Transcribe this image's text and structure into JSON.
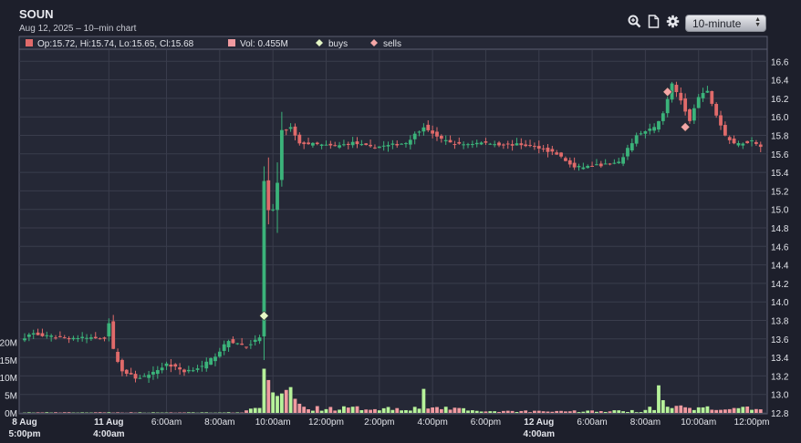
{
  "header": {
    "ticker": "SOUN",
    "subtitle": "Aug 12, 2025 – 10–min chart",
    "interval": "10-minute",
    "icons": [
      "zoom-icon",
      "document-icon",
      "gear-icon"
    ]
  },
  "legend": {
    "ohlc": "Op:15.72, Hi:15.74, Lo:15.65, Cl:15.68",
    "vol": "Vol: 0.455M",
    "buys": "buys",
    "sells": "sells"
  },
  "colors": {
    "background": "#1d1f2b",
    "grid": "#3a3d4c",
    "up": "#3bb37a",
    "down": "#e06a6a",
    "volume_up": "#b6f29a",
    "volume_down": "#f09aa0",
    "buy_marker": "#e4f6c4",
    "sell_marker": "#f4a6a6"
  },
  "chart_data": {
    "type": "candlestick",
    "ylim": [
      12.8,
      16.7
    ],
    "y_ticks": [
      "12.8",
      "13.0",
      "13.2",
      "13.4",
      "13.6",
      "13.8",
      "14.0",
      "14.2",
      "14.4",
      "14.6",
      "14.8",
      "15.0",
      "15.2",
      "15.4",
      "15.6",
      "15.8",
      "16.0",
      "16.2",
      "16.4",
      "16.6"
    ],
    "volume_ticks": [
      "0M",
      "5M",
      "10M",
      "15M",
      "20M"
    ],
    "volume_lim": [
      0,
      20
    ],
    "x_labels": [
      {
        "line1": "8 Aug",
        "line2": "5:00pm",
        "bold": true,
        "bar": 0
      },
      {
        "line1": "11 Aug",
        "line2": "4:00am",
        "bold": true,
        "bar": 19
      },
      {
        "line1": "6:00am",
        "bar": 32
      },
      {
        "line1": "8:00am",
        "bar": 44
      },
      {
        "line1": "10:00am",
        "bar": 56
      },
      {
        "line1": "12:00pm",
        "bar": 68
      },
      {
        "line1": "2:00pm",
        "bar": 80
      },
      {
        "line1": "4:00pm",
        "bar": 92
      },
      {
        "line1": "6:00pm",
        "bar": 104
      },
      {
        "line1": "12 Aug",
        "line2": "4:00am",
        "bold": true,
        "bar": 116
      },
      {
        "line1": "6:00am",
        "bar": 128
      },
      {
        "line1": "8:00am",
        "bar": 140
      },
      {
        "line1": "10:00am",
        "bar": 152
      },
      {
        "line1": "12:00pm",
        "bar": 164
      }
    ],
    "keypoints": [
      [
        0,
        13.62
      ],
      [
        2,
        13.66
      ],
      [
        4,
        13.63
      ],
      [
        10,
        13.61
      ],
      [
        18,
        13.61
      ],
      [
        19,
        13.78
      ],
      [
        20,
        13.48
      ],
      [
        22,
        13.25
      ],
      [
        25,
        13.18
      ],
      [
        28,
        13.2
      ],
      [
        32,
        13.33
      ],
      [
        36,
        13.25
      ],
      [
        40,
        13.3
      ],
      [
        43,
        13.42
      ],
      [
        46,
        13.58
      ],
      [
        50,
        13.52
      ],
      [
        52,
        13.58
      ],
      [
        53,
        13.62
      ],
      [
        54,
        15.3
      ],
      [
        55,
        14.98
      ],
      [
        56,
        15.0
      ],
      [
        57,
        15.3
      ],
      [
        58,
        15.85
      ],
      [
        60,
        15.88
      ],
      [
        62,
        15.72
      ],
      [
        66,
        15.7
      ],
      [
        70,
        15.68
      ],
      [
        74,
        15.72
      ],
      [
        78,
        15.67
      ],
      [
        82,
        15.69
      ],
      [
        86,
        15.72
      ],
      [
        90,
        15.9
      ],
      [
        94,
        15.75
      ],
      [
        98,
        15.7
      ],
      [
        103,
        15.72
      ],
      [
        108,
        15.7
      ],
      [
        112,
        15.7
      ],
      [
        116,
        15.67
      ],
      [
        120,
        15.6
      ],
      [
        124,
        15.45
      ],
      [
        128,
        15.47
      ],
      [
        134,
        15.5
      ],
      [
        138,
        15.8
      ],
      [
        142,
        15.88
      ],
      [
        144,
        16.05
      ],
      [
        146,
        16.35
      ],
      [
        148,
        16.18
      ],
      [
        150,
        15.95
      ],
      [
        152,
        16.22
      ],
      [
        154,
        16.27
      ],
      [
        156,
        16.02
      ],
      [
        158,
        15.8
      ],
      [
        160,
        15.7
      ],
      [
        164,
        15.74
      ],
      [
        166,
        15.69
      ]
    ],
    "volume_spikes": [
      [
        54,
        12.5
      ],
      [
        55,
        9.3
      ],
      [
        56,
        5.8
      ],
      [
        57,
        4.8
      ],
      [
        58,
        5.5
      ],
      [
        59,
        6.5
      ],
      [
        60,
        7.3
      ],
      [
        61,
        4.0
      ],
      [
        62,
        2.6
      ],
      [
        90,
        6.8
      ],
      [
        143,
        7.8
      ],
      [
        144,
        3.6
      ]
    ],
    "buys": [
      {
        "bar": 54,
        "price": 13.85
      }
    ],
    "sells": [
      {
        "bar": 145,
        "price": 16.27
      },
      {
        "bar": 149,
        "price": 15.89
      }
    ]
  }
}
